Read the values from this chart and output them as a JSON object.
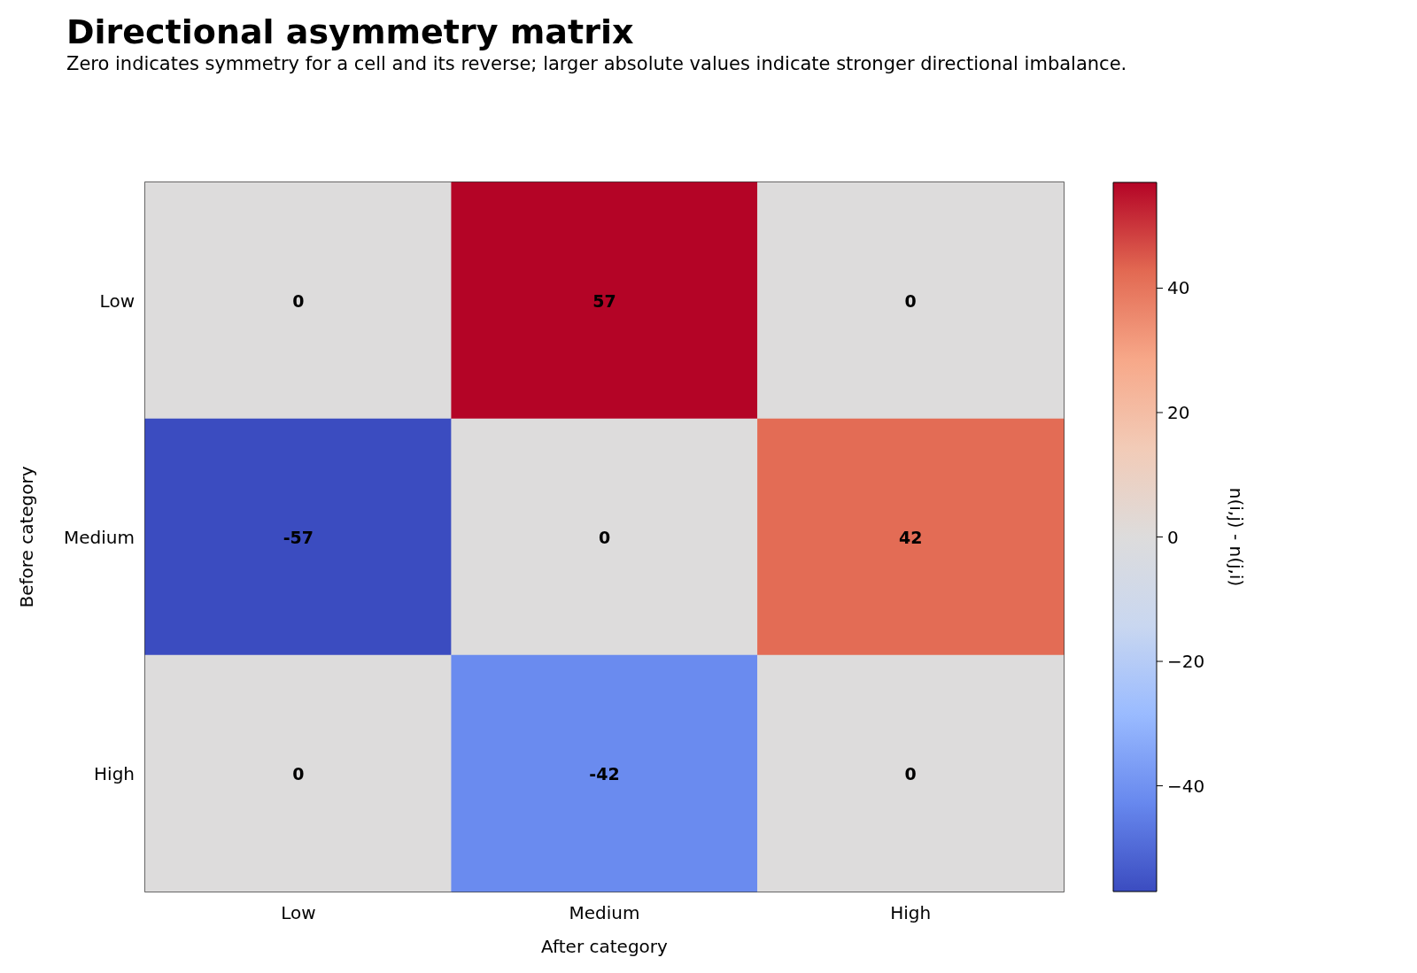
{
  "chart_data": {
    "type": "heatmap",
    "title": "Directional asymmetry matrix",
    "subtitle": "Zero indicates symmetry for a cell and its reverse; larger absolute values indicate stronger directional imbalance.",
    "xlabel": "After category",
    "ylabel": "Before category",
    "clabel": "n(i,j) - n(j,i)",
    "categories": [
      "Low",
      "Medium",
      "High"
    ],
    "y_categories": [
      "Low",
      "Medium",
      "High"
    ],
    "cells": [
      [
        0,
        57,
        0
      ],
      [
        -57,
        0,
        42
      ],
      [
        0,
        -42,
        0
      ]
    ],
    "clim": [
      -57,
      57
    ],
    "cticks": [
      {
        "value": -40,
        "label": "−40"
      },
      {
        "value": -20,
        "label": "−20"
      },
      0,
      20,
      40
    ],
    "data_labels": true
  }
}
